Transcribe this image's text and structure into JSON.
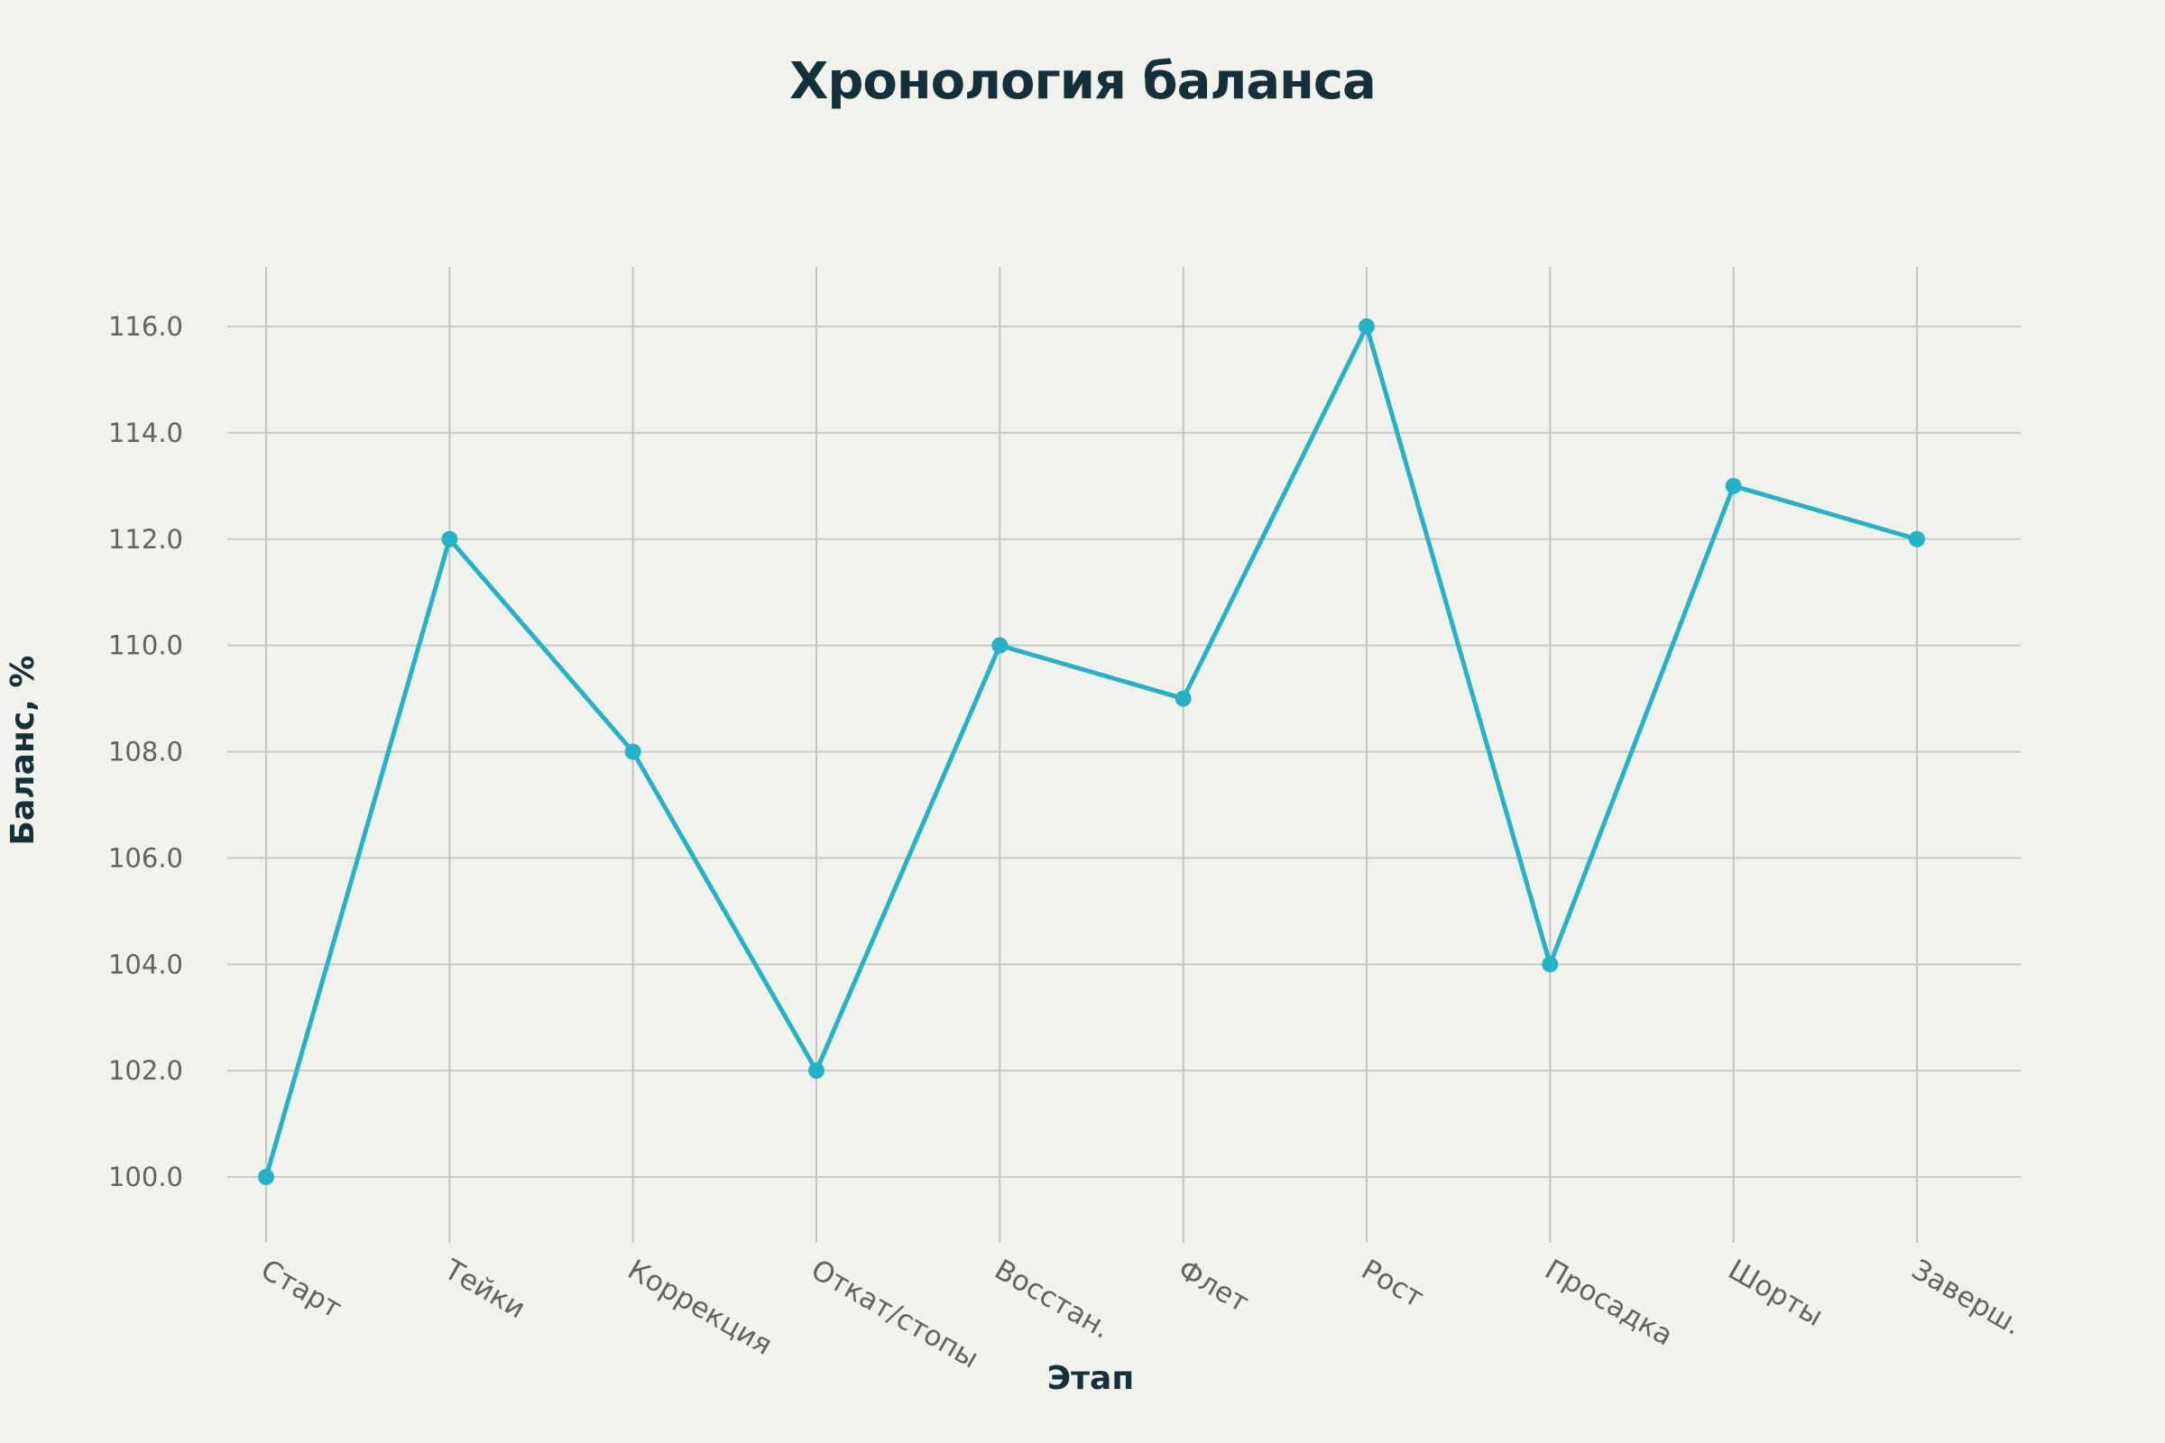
{
  "chart_data": {
    "type": "line",
    "title": "Хронология баланса",
    "xlabel": "Этап",
    "ylabel": "Баланс, %",
    "categories": [
      "Старт",
      "Тейки",
      "Коррекция",
      "Откат/стопы",
      "Восстан.",
      "Флет",
      "Рост",
      "Просадка",
      "Шорты",
      "Заверш."
    ],
    "series": [
      {
        "values": [
          100,
          112,
          108,
          102,
          110,
          109,
          116,
          104,
          113,
          112
        ],
        "color": "#22b3c9"
      }
    ],
    "ylim": [
      99.0,
      117.0
    ],
    "yticks": [
      "100.0",
      "102.0",
      "104.0",
      "106.0",
      "108.0",
      "110.0",
      "112.0",
      "114.0",
      "116.0"
    ],
    "grid": true,
    "legend": "none",
    "marker": "circle"
  }
}
